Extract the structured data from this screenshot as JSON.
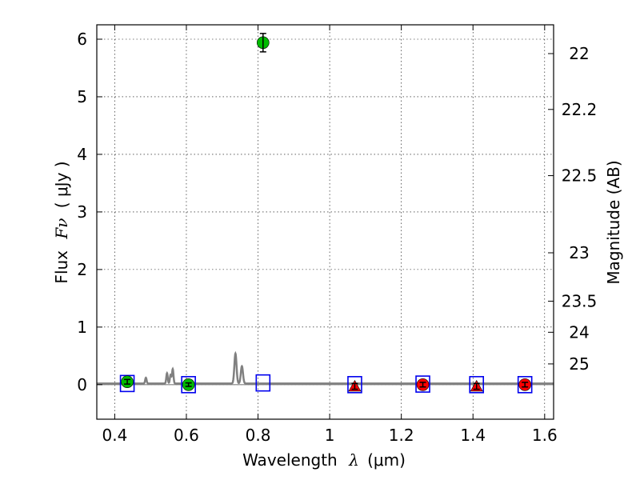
{
  "chart_data": {
    "type": "scatter",
    "xlabel_text": "Wavelength",
    "xlabel_symbol": "λ",
    "xlabel_unit": "(μm)",
    "ylabel_text": "Flux",
    "ylabel_symbol": "Fν",
    "ylabel_unit": "( μJy )",
    "y2label": "Magnitude (AB)",
    "xlim": [
      0.35,
      1.625
    ],
    "ylim": [
      -0.6,
      6.25
    ],
    "xticks": [
      0.4,
      0.6,
      0.8,
      1.0,
      1.2,
      1.4,
      1.6
    ],
    "xtick_labels": [
      "0.4",
      "0.6",
      "0.8",
      "1",
      "1.2",
      "1.4",
      "1.6"
    ],
    "yticks": [
      0,
      1,
      2,
      3,
      4,
      5,
      6
    ],
    "ytick_labels": [
      "0",
      "1",
      "2",
      "3",
      "4",
      "5",
      "6"
    ],
    "y2ticks": [
      {
        "label": "22",
        "flux": 5.75
      },
      {
        "label": "22.2",
        "flux": 4.78
      },
      {
        "label": "22.5",
        "flux": 3.63
      },
      {
        "label": "23",
        "flux": 2.29
      },
      {
        "label": "23.5",
        "flux": 1.45
      },
      {
        "label": "24",
        "flux": 0.91
      },
      {
        "label": "25",
        "flux": 0.36
      }
    ],
    "grid": true,
    "colors": {
      "detection": "#00bb00",
      "upper_limit": "#ff0000",
      "model_box": "#0000ee",
      "template": "#808080"
    },
    "template_spectrum": {
      "baseline": 0.02,
      "lines": [
        {
          "x": 0.487,
          "height": 0.1,
          "width": 0.002
        },
        {
          "x": 0.546,
          "height": 0.18,
          "width": 0.002
        },
        {
          "x": 0.556,
          "height": 0.15,
          "width": 0.002
        },
        {
          "x": 0.562,
          "height": 0.25,
          "width": 0.002
        },
        {
          "x": 0.737,
          "height": 0.52,
          "width": 0.003
        },
        {
          "x": 0.755,
          "height": 0.3,
          "width": 0.003
        }
      ]
    },
    "detections": [
      {
        "x": 0.435,
        "y": 0.05,
        "yerr": 0.04
      },
      {
        "x": 0.606,
        "y": 0.0,
        "yerr": 0.03
      },
      {
        "x": 0.814,
        "y": 5.94,
        "yerr": 0.16
      }
    ],
    "upper_limit_markers": [
      {
        "x": 1.07,
        "y": -0.03,
        "shape": "triangle",
        "yerr": 0.05
      },
      {
        "x": 1.26,
        "y": 0.0,
        "shape": "circle",
        "yerr": 0.04
      },
      {
        "x": 1.41,
        "y": -0.03,
        "shape": "triangle",
        "yerr": 0.05
      },
      {
        "x": 1.545,
        "y": 0.0,
        "shape": "circle",
        "yerr": 0.04
      }
    ],
    "model_boxes": [
      {
        "x": 0.435,
        "y": 0.02
      },
      {
        "x": 0.606,
        "y": 0.0
      },
      {
        "x": 0.814,
        "y": 0.03
      },
      {
        "x": 1.07,
        "y": 0.0
      },
      {
        "x": 1.26,
        "y": 0.01
      },
      {
        "x": 1.41,
        "y": 0.0
      },
      {
        "x": 1.545,
        "y": 0.0
      }
    ]
  }
}
